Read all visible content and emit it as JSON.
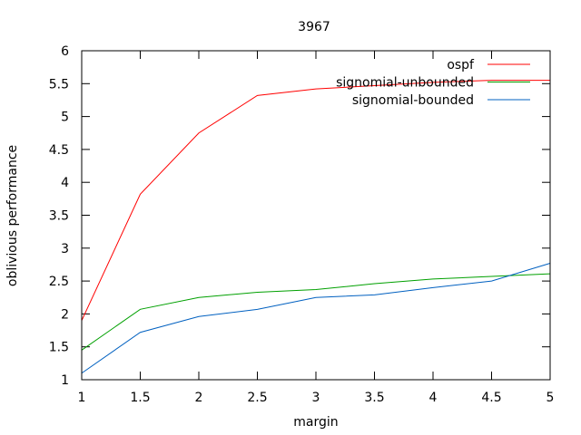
{
  "chart_data": {
    "type": "line",
    "title": "3967",
    "xlabel": "margin",
    "ylabel": "oblivious performance",
    "xlim": [
      1,
      5
    ],
    "ylim": [
      1,
      6
    ],
    "xticks": [
      1,
      1.5,
      2,
      2.5,
      3,
      3.5,
      4,
      4.5,
      5
    ],
    "yticks": [
      1,
      1.5,
      2,
      2.5,
      3,
      3.5,
      4,
      4.5,
      5,
      5.5,
      6
    ],
    "x": [
      1,
      1.5,
      2,
      2.5,
      3,
      3.5,
      4,
      4.5,
      5
    ],
    "grid": false,
    "legend_position": "top-right",
    "series": [
      {
        "name": "ospf",
        "color": "#ff0000",
        "values": [
          1.9,
          3.82,
          4.75,
          5.32,
          5.42,
          5.47,
          5.52,
          5.55,
          5.55
        ]
      },
      {
        "name": "signomial-unbounded",
        "color": "#00a000",
        "values": [
          1.45,
          2.07,
          2.25,
          2.33,
          2.37,
          2.46,
          2.53,
          2.57,
          2.61
        ]
      },
      {
        "name": "signomial-bounded",
        "color": "#0060c0",
        "values": [
          1.1,
          1.72,
          1.96,
          2.07,
          2.25,
          2.29,
          2.4,
          2.5,
          2.77
        ]
      }
    ]
  }
}
